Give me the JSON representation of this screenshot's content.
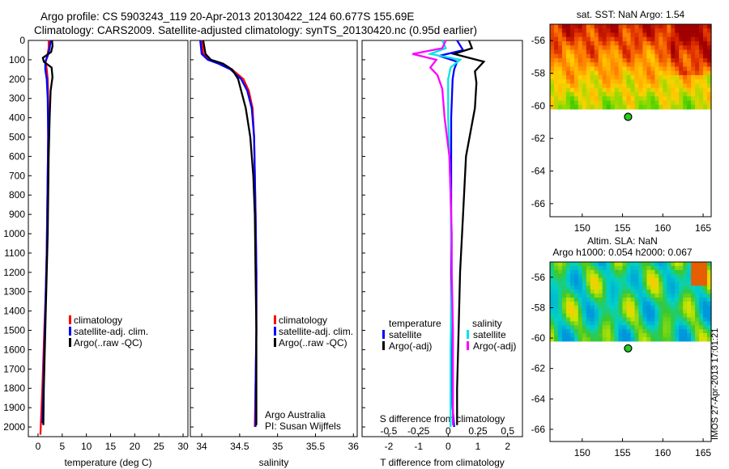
{
  "header": {
    "line1": "Argo profile: CS 5903243_119 20-Apr-2013 20130422_124 60.677S 155.69E",
    "line2": "Climatology: CARS2009. Satellite-adjusted climatology: synTS_20130420.nc (0.95d earlier)"
  },
  "side_label": "IMOS 27-Apr-2013 17:01:21",
  "colors": {
    "climatology": "#ff0000",
    "satellite": "#0000ff",
    "argo": "#000000",
    "sat_sal": "#00e5e5",
    "argo_sal": "#ff00ff"
  },
  "chart_data": [
    {
      "type": "line",
      "id": "temperature",
      "xlabel": "temperature (deg C)",
      "xlim": [
        -2,
        31
      ],
      "xticks": [
        "0",
        "5",
        "10",
        "15",
        "20",
        "25",
        "30"
      ],
      "xtick_values": [
        0,
        5,
        10,
        15,
        20,
        25,
        30
      ],
      "ylim": [
        0,
        2050
      ],
      "yticks": [
        "0",
        "100",
        "200",
        "300",
        "400",
        "500",
        "600",
        "700",
        "800",
        "900",
        "1000",
        "1100",
        "1200",
        "1300",
        "1400",
        "1500",
        "1600",
        "1700",
        "1800",
        "1900",
        "2000"
      ],
      "ytick_values": [
        0,
        100,
        200,
        300,
        400,
        500,
        600,
        700,
        800,
        900,
        1000,
        1100,
        1200,
        1300,
        1400,
        1500,
        1600,
        1700,
        1800,
        1900,
        2000
      ],
      "legend": [
        "climatology",
        "satellite-adj. clim.",
        "Argo(..raw -QC)"
      ],
      "series": [
        {
          "name": "climatology",
          "color": "#ff0000",
          "x": [
            2.2,
            2.2,
            1.9,
            1.6,
            1.8,
            2.0,
            2.1,
            2.1,
            2.0,
            1.9,
            1.8,
            1.6,
            1.3,
            0.9,
            0.5
          ],
          "y": [
            0,
            40,
            80,
            110,
            150,
            200,
            300,
            500,
            700,
            900,
            1100,
            1300,
            1500,
            1800,
            2040
          ]
        },
        {
          "name": "satellite-adj. clim.",
          "color": "#0000ff",
          "x": [
            2.6,
            2.4,
            2.0,
            1.5,
            1.5,
            1.8,
            2.0,
            2.1,
            2.0,
            1.9,
            1.8,
            1.6,
            1.4,
            1.1,
            0.9
          ],
          "y": [
            0,
            40,
            80,
            110,
            150,
            200,
            300,
            500,
            700,
            900,
            1100,
            1300,
            1500,
            1800,
            1980
          ]
        },
        {
          "name": "Argo(..raw -QC)",
          "color": "#000000",
          "x": [
            2.9,
            3.0,
            2.7,
            1.0,
            1.2,
            2.8,
            3.0,
            2.6,
            2.4,
            2.2,
            2.1,
            2.0,
            1.8,
            1.6,
            1.4,
            1.2,
            1.1
          ],
          "y": [
            0,
            30,
            60,
            90,
            110,
            140,
            190,
            260,
            400,
            600,
            800,
            1000,
            1200,
            1400,
            1600,
            1800,
            1990
          ]
        }
      ]
    },
    {
      "type": "line",
      "id": "salinity",
      "xlabel": "salinity",
      "xlim": [
        33.85,
        36.05
      ],
      "xticks": [
        "34",
        "34.5",
        "35",
        "35.5",
        "36"
      ],
      "xtick_values": [
        34,
        34.5,
        35,
        35.5,
        36
      ],
      "ylim": [
        0,
        2050
      ],
      "legend": [
        "climatology",
        "satellite-adj. clim.",
        "Argo(..raw -QC)"
      ],
      "annotation": [
        "Argo Australia",
        "PI: Susan Wijffels"
      ],
      "series": [
        {
          "name": "climatology",
          "color": "#ff0000",
          "x": [
            34.0,
            34.02,
            34.1,
            34.25,
            34.4,
            34.55,
            34.62,
            34.67,
            34.69,
            34.7,
            34.71,
            34.72,
            34.72,
            34.71,
            34.7
          ],
          "y": [
            0,
            70,
            100,
            120,
            150,
            200,
            260,
            350,
            500,
            700,
            900,
            1200,
            1500,
            1800,
            2000
          ]
        },
        {
          "name": "satellite-adj. clim.",
          "color": "#0000ff",
          "x": [
            33.98,
            34.0,
            34.08,
            34.22,
            34.38,
            34.52,
            34.6,
            34.66,
            34.69,
            34.7,
            34.71,
            34.72,
            34.72,
            34.71,
            34.71
          ],
          "y": [
            0,
            70,
            100,
            120,
            150,
            200,
            260,
            350,
            500,
            700,
            900,
            1200,
            1500,
            1800,
            2000
          ]
        },
        {
          "name": "Argo(..raw -QC)",
          "color": "#000000",
          "x": [
            34.02,
            34.05,
            34.12,
            34.28,
            34.4,
            34.48,
            34.52,
            34.58,
            34.64,
            34.68,
            34.7,
            34.71,
            34.72,
            34.72,
            34.72
          ],
          "y": [
            0,
            70,
            100,
            120,
            150,
            200,
            260,
            350,
            500,
            700,
            900,
            1200,
            1500,
            1800,
            1990
          ]
        }
      ]
    },
    {
      "type": "line",
      "id": "difference",
      "xlabel": "T difference from climatology",
      "xlabel_top": "S difference from climatology",
      "xlim": [
        -2.9,
        2.5
      ],
      "xticks": [
        "-2",
        "-1",
        "0",
        "1",
        "2"
      ],
      "xtick_values": [
        -2,
        -1,
        0,
        1,
        2
      ],
      "sticks": [
        "-0.5",
        "-0.25",
        "0",
        "0.25",
        "0.5"
      ],
      "stick_values": [
        -0.5,
        -0.25,
        0,
        0.25,
        0.5
      ],
      "ylim": [
        0,
        2050
      ],
      "legend_titles": [
        "temperature",
        "salinity"
      ],
      "legend": [
        "satellite",
        "Argo(-adj)",
        "satellite",
        "Argo(-adj)"
      ],
      "series": [
        {
          "name": "satellite",
          "group": "temperature",
          "color": "#0000ff",
          "x": [
            0.3,
            0.5,
            -0.3,
            0.3,
            0.2,
            0.15,
            0.1,
            0.1,
            0.1,
            0.1,
            0.15,
            0.2
          ],
          "y": [
            0,
            50,
            80,
            110,
            150,
            200,
            400,
            800,
            1200,
            1600,
            1900,
            2000
          ]
        },
        {
          "name": "Argo(-adj)",
          "group": "temperature",
          "color": "#000000",
          "x": [
            0.7,
            0.8,
            0.2,
            1.2,
            0.9,
            0.95,
            0.9,
            0.6,
            0.5,
            0.4,
            0.35,
            0.3,
            0.3
          ],
          "y": [
            0,
            40,
            70,
            110,
            160,
            220,
            350,
            600,
            900,
            1200,
            1500,
            1800,
            1990
          ]
        },
        {
          "name": "satellite",
          "group": "salinity",
          "color": "#00e5e5",
          "x": [
            -0.05,
            -0.02,
            -0.15,
            0.1,
            0.02,
            0.0,
            0.0,
            0.02,
            0.03,
            0.02,
            0.02,
            0.02
          ],
          "y": [
            0,
            40,
            70,
            100,
            140,
            200,
            400,
            800,
            1200,
            1600,
            1900,
            2000
          ]
        },
        {
          "name": "Argo(-adj)",
          "group": "salinity",
          "color": "#ff00ff",
          "x": [
            -0.02,
            -0.05,
            -0.3,
            -0.1,
            -0.15,
            -0.09,
            -0.05,
            -0.03,
            0.01,
            0.02,
            0.03,
            0.03,
            0.04,
            0.04
          ],
          "y": [
            0,
            40,
            70,
            100,
            140,
            180,
            250,
            400,
            600,
            800,
            1000,
            1200,
            1500,
            1990
          ]
        }
      ]
    },
    {
      "type": "heatmap",
      "id": "sst-map",
      "title": "sat. SST: NaN Argo: 1.54",
      "xlim": [
        146,
        166
      ],
      "ylim": [
        -66.8,
        -55
      ],
      "xticks": [
        "150",
        "155",
        "160",
        "165"
      ],
      "xtick_values": [
        150,
        155,
        160,
        165
      ],
      "yticks": [
        "-56",
        "-58",
        "-60",
        "-62",
        "-64",
        "-66"
      ],
      "ytick_values": [
        -56,
        -58,
        -60,
        -62,
        -64,
        -66
      ],
      "data_extent": {
        "lon": [
          146,
          166
        ],
        "lat": [
          -60.2,
          -55
        ]
      },
      "profile_location": {
        "lon": 155.69,
        "lat": -60.677
      }
    },
    {
      "type": "heatmap",
      "id": "sla-map",
      "title_lines": [
        "Altim. SLA: NaN",
        "Argo h1000: 0.054 h2000: 0.067"
      ],
      "xlim": [
        146,
        166
      ],
      "ylim": [
        -66.8,
        -55
      ],
      "xticks": [
        "150",
        "155",
        "160",
        "165"
      ],
      "xtick_values": [
        150,
        155,
        160,
        165
      ],
      "yticks": [
        "-56",
        "-58",
        "-60",
        "-62",
        "-64",
        "-66"
      ],
      "ytick_values": [
        -56,
        -58,
        -60,
        -62,
        -64,
        -66
      ],
      "data_extent": {
        "lon": [
          146,
          166
        ],
        "lat": [
          -60.2,
          -55
        ]
      },
      "profile_location": {
        "lon": 155.69,
        "lat": -60.677
      }
    }
  ]
}
